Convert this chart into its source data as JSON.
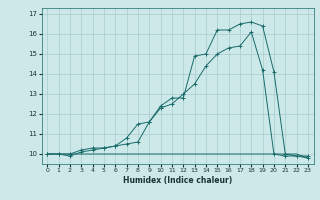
{
  "xlabel": "Humidex (Indice chaleur)",
  "bg_color": "#cce8e8",
  "grid_color": "#aacccc",
  "line_color": "#1a6b6b",
  "xlim": [
    -0.5,
    23.5
  ],
  "ylim": [
    9.5,
    17.3
  ],
  "xticks": [
    0,
    1,
    2,
    3,
    4,
    5,
    6,
    7,
    8,
    9,
    10,
    11,
    12,
    13,
    14,
    15,
    16,
    17,
    18,
    19,
    20,
    21,
    22,
    23
  ],
  "yticks": [
    10,
    11,
    12,
    13,
    14,
    15,
    16,
    17
  ],
  "line1_x": [
    0,
    1,
    2,
    3,
    4,
    5,
    6,
    7,
    8,
    9,
    10,
    11,
    12,
    13,
    14,
    15,
    16,
    17,
    18,
    19,
    20,
    21,
    22,
    23
  ],
  "line1_y": [
    10.0,
    10.0,
    10.0,
    10.0,
    10.0,
    10.0,
    10.0,
    10.0,
    10.0,
    10.0,
    10.0,
    10.0,
    10.0,
    10.0,
    10.0,
    10.0,
    10.0,
    10.0,
    10.0,
    10.0,
    10.0,
    10.0,
    10.0,
    9.8
  ],
  "line2_x": [
    0,
    1,
    2,
    3,
    4,
    5,
    6,
    7,
    8,
    9,
    10,
    11,
    12,
    13,
    14,
    15,
    16,
    17,
    18,
    19,
    20,
    21,
    22,
    23
  ],
  "line2_y": [
    10.0,
    10.0,
    10.0,
    10.2,
    10.3,
    10.3,
    10.4,
    10.5,
    10.6,
    11.6,
    12.3,
    12.5,
    13.0,
    13.5,
    14.4,
    15.0,
    15.3,
    15.4,
    16.1,
    14.2,
    10.0,
    9.9,
    9.9,
    9.9
  ],
  "line3_x": [
    0,
    1,
    2,
    3,
    4,
    5,
    6,
    7,
    8,
    9,
    10,
    11,
    12,
    13,
    14,
    15,
    16,
    17,
    18,
    19,
    20,
    21,
    22,
    23
  ],
  "line3_y": [
    10.0,
    10.0,
    9.9,
    10.1,
    10.2,
    10.3,
    10.4,
    10.8,
    11.5,
    11.6,
    12.4,
    12.8,
    12.8,
    14.9,
    15.0,
    16.2,
    16.2,
    16.5,
    16.6,
    16.4,
    14.1,
    10.0,
    9.9,
    9.8
  ]
}
